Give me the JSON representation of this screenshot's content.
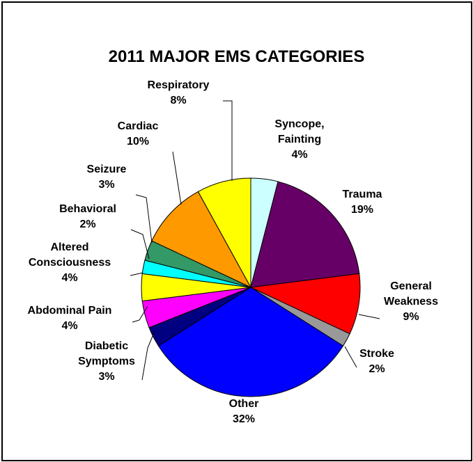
{
  "chart_data": {
    "type": "pie",
    "title": "2011 MAJOR EMS CATEGORIES",
    "start_angle_deg": 90,
    "direction": "clockwise",
    "slices": [
      {
        "label": [
          "Syncope,",
          "Fainting"
        ],
        "value": 4,
        "pct_label": "4%",
        "color": "#ccffff"
      },
      {
        "label": [
          "Trauma"
        ],
        "value": 19,
        "pct_label": "19%",
        "color": "#660066"
      },
      {
        "label": [
          "General",
          "Weakness"
        ],
        "value": 9,
        "pct_label": "9%",
        "color": "#ff0000"
      },
      {
        "label": [
          "Stroke"
        ],
        "value": 2,
        "pct_label": "2%",
        "color": "#999999"
      },
      {
        "label": [
          "Other"
        ],
        "value": 32,
        "pct_label": "32%",
        "color": "#0000ff"
      },
      {
        "label": [
          "Diabetic",
          "Symptoms"
        ],
        "value": 3,
        "pct_label": "3%",
        "color": "#000080"
      },
      {
        "label": [
          "Abdominal Pain"
        ],
        "value": 4,
        "pct_label": "4%",
        "color": "#ff00ff"
      },
      {
        "label": [
          "Altered",
          "Consciousness"
        ],
        "value": 4,
        "pct_label": "4%",
        "color": "#ffff00"
      },
      {
        "label": [
          "Behavioral"
        ],
        "value": 2,
        "pct_label": "2%",
        "color": "#00ffff"
      },
      {
        "label": [
          "Seizure"
        ],
        "value": 3,
        "pct_label": "3%",
        "color": "#339966"
      },
      {
        "label": [
          "Cardiac"
        ],
        "value": 10,
        "pct_label": "10%",
        "color": "#ff9900"
      },
      {
        "label": [
          "Respiratory"
        ],
        "value": 8,
        "pct_label": "8%",
        "color": "#ffff00"
      }
    ]
  }
}
